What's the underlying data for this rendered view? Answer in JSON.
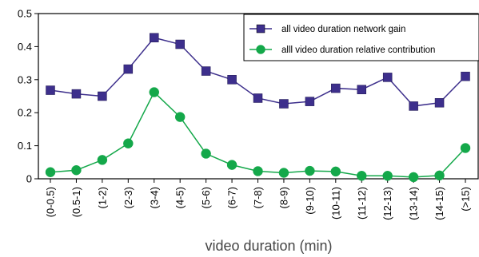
{
  "chart_data": {
    "type": "line",
    "title": "",
    "xlabel": "video duration (min)",
    "ylabel": "",
    "categories": [
      "(0-0.5)",
      "(0.5-1)",
      "(1-2)",
      "(2-3)",
      "(3-4)",
      "(4-5)",
      "(5-6)",
      "(6-7)",
      "(7-8)",
      "(8-9)",
      "(9-10)",
      "(10-11)",
      "(11-12)",
      "(12-13)",
      "(13-14)",
      "(14-15)",
      "(>15)"
    ],
    "ylim": [
      0,
      0.5
    ],
    "yticks": [
      "0",
      "0.1",
      "0.2",
      "0.3",
      "0.4",
      "0.5"
    ],
    "grid": false,
    "legend_position": "top-right",
    "series": [
      {
        "name": "all video duration network gain",
        "marker": "square",
        "color": "#3d2f8c",
        "values": [
          0.268,
          0.257,
          0.25,
          0.332,
          0.427,
          0.407,
          0.326,
          0.3,
          0.244,
          0.227,
          0.234,
          0.274,
          0.27,
          0.307,
          0.22,
          0.23,
          0.31
        ]
      },
      {
        "name": "alll video duration relative contribution",
        "marker": "circle",
        "color": "#14a84a",
        "values": [
          0.02,
          0.026,
          0.057,
          0.107,
          0.262,
          0.187,
          0.076,
          0.042,
          0.023,
          0.018,
          0.024,
          0.022,
          0.009,
          0.009,
          0.005,
          0.01,
          0.093
        ]
      }
    ]
  }
}
